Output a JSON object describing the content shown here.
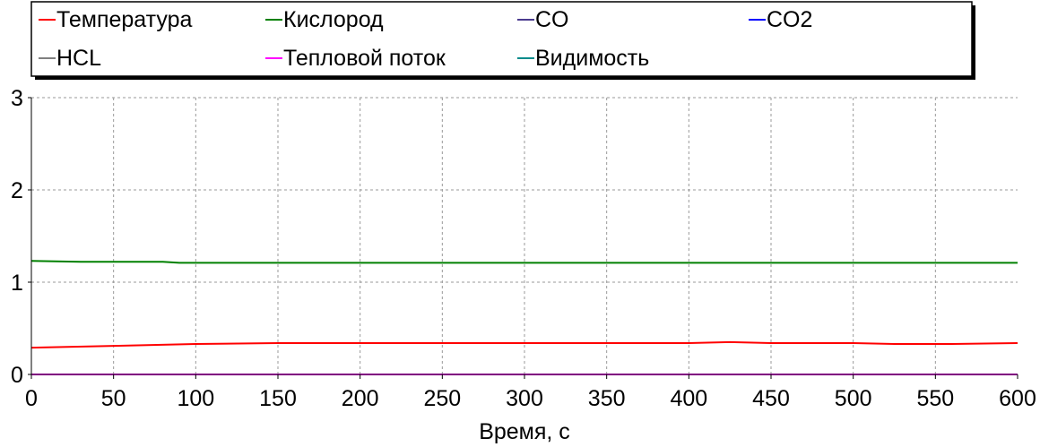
{
  "chart_data": {
    "type": "line",
    "title": "",
    "xlabel": "Время, с",
    "ylabel": "",
    "xlim": [
      0,
      600
    ],
    "ylim": [
      0,
      3
    ],
    "x_ticks": [
      "0",
      "50",
      "100",
      "150",
      "200",
      "250",
      "300",
      "350",
      "400",
      "450",
      "500",
      "550",
      "600"
    ],
    "y_ticks": [
      "0",
      "1",
      "2",
      "3"
    ],
    "grid": true,
    "legend_position": "top",
    "series": [
      {
        "name": "Температура",
        "color": "#ff0000",
        "points": [
          [
            0,
            0.29
          ],
          [
            50,
            0.31
          ],
          [
            100,
            0.33
          ],
          [
            150,
            0.34
          ],
          [
            200,
            0.34
          ],
          [
            250,
            0.34
          ],
          [
            300,
            0.34
          ],
          [
            350,
            0.34
          ],
          [
            400,
            0.34
          ],
          [
            425,
            0.35
          ],
          [
            450,
            0.34
          ],
          [
            500,
            0.34
          ],
          [
            525,
            0.33
          ],
          [
            560,
            0.33
          ],
          [
            600,
            0.34
          ]
        ]
      },
      {
        "name": "Кислород",
        "color": "#008000",
        "points": [
          [
            0,
            1.23
          ],
          [
            30,
            1.22
          ],
          [
            80,
            1.22
          ],
          [
            90,
            1.21
          ],
          [
            150,
            1.21
          ],
          [
            300,
            1.21
          ],
          [
            450,
            1.21
          ],
          [
            600,
            1.21
          ]
        ]
      },
      {
        "name": "CO",
        "color": "#4b3b8f",
        "points": [
          [
            0,
            0.0
          ],
          [
            600,
            0.0
          ]
        ]
      },
      {
        "name": "CO2",
        "color": "#0000ff",
        "points": [
          [
            0,
            0.0
          ],
          [
            600,
            0.0
          ]
        ]
      },
      {
        "name": "HCL",
        "color": "#808080",
        "points": [
          [
            0,
            0.0
          ],
          [
            600,
            0.0
          ]
        ]
      },
      {
        "name": "Тепловой поток",
        "color": "#ff00ff",
        "points": [
          [
            0,
            0.0
          ],
          [
            600,
            0.0
          ]
        ]
      },
      {
        "name": "Видимость",
        "color": "#008b8b",
        "points": [
          [
            0,
            0.0
          ],
          [
            600,
            0.0
          ]
        ]
      }
    ]
  }
}
